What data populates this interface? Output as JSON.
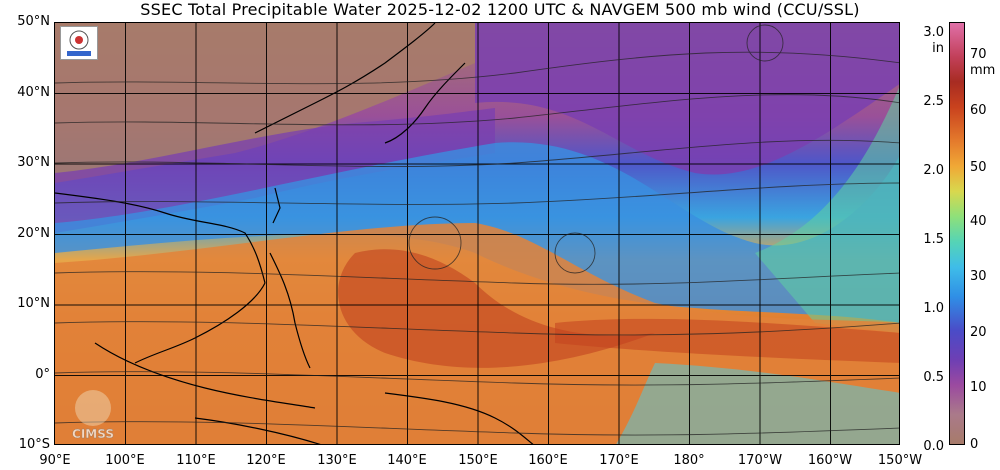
{
  "title": "SSEC Total Precipitable Water  2025-12-02 1200 UTC & NAVGEM 500 mb wind (CCU/SSL)",
  "lat_labels": [
    "50°N",
    "40°N",
    "30°N",
    "20°N",
    "10°N",
    "0°",
    "10°S"
  ],
  "lon_labels": [
    "90°E",
    "100°E",
    "110°E",
    "120°E",
    "130°E",
    "140°E",
    "150°E",
    "160°E",
    "170°E",
    "180°",
    "170°W",
    "160°W",
    "150°W"
  ],
  "colorbar": {
    "inch_unit": "in",
    "mm_unit": "mm",
    "inch_ticks": [
      "3.0",
      "2.5",
      "2.0",
      "1.5",
      "1.0",
      "0.5",
      "0.0"
    ],
    "mm_ticks": [
      "70",
      "60",
      "50",
      "40",
      "30",
      "20",
      "10",
      "0"
    ]
  },
  "watermark": "CIMSS",
  "colors": {
    "dry": "#a77b6a",
    "low": "#7a3fb0",
    "mid": "#2f8fe6",
    "moist": "#e68a30",
    "very_moist": "#c13a1e",
    "land": "#000000"
  }
}
